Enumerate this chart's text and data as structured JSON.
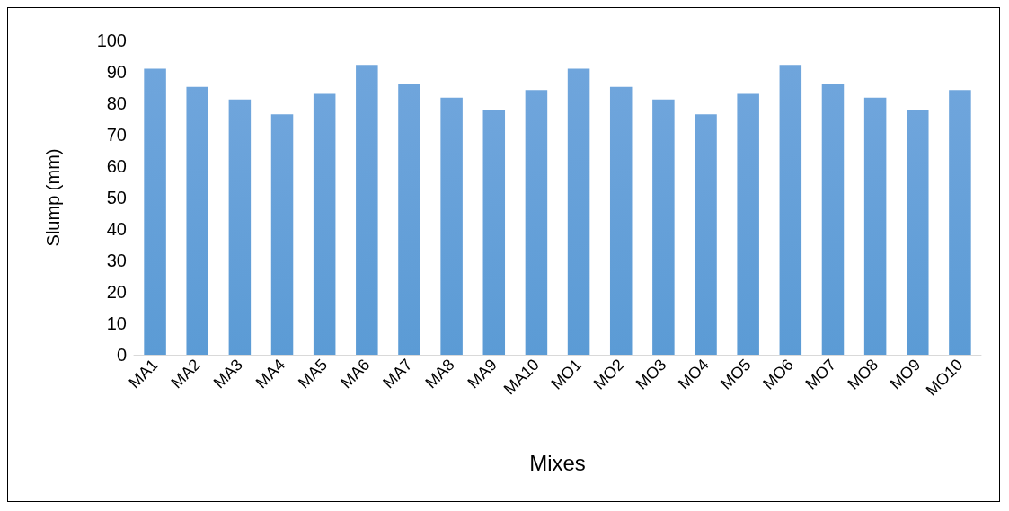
{
  "chart_data": {
    "type": "bar",
    "xlabel": "Mixes",
    "ylabel": "Slump (mm)",
    "categories": [
      "MA1",
      "MA2",
      "MA3",
      "MA4",
      "MA5",
      "MA6",
      "MA7",
      "MA8",
      "MA9",
      "MA10",
      "MO1",
      "MO2",
      "MO3",
      "MO4",
      "MO5",
      "MO6",
      "MO7",
      "MO8",
      "MO9",
      "MO10"
    ],
    "values": [
      91,
      85.2,
      81.2,
      76.5,
      83,
      92.2,
      86.3,
      81.8,
      77.8,
      84.2,
      91,
      85.2,
      81.2,
      76.5,
      83,
      92.2,
      86.3,
      81.8,
      77.8,
      84.2
    ],
    "color": "#5b9bd5",
    "ylim": [
      0,
      100
    ],
    "yticks": [
      0,
      10,
      20,
      30,
      40,
      50,
      60,
      70,
      80,
      90,
      100
    ],
    "grid": false
  }
}
